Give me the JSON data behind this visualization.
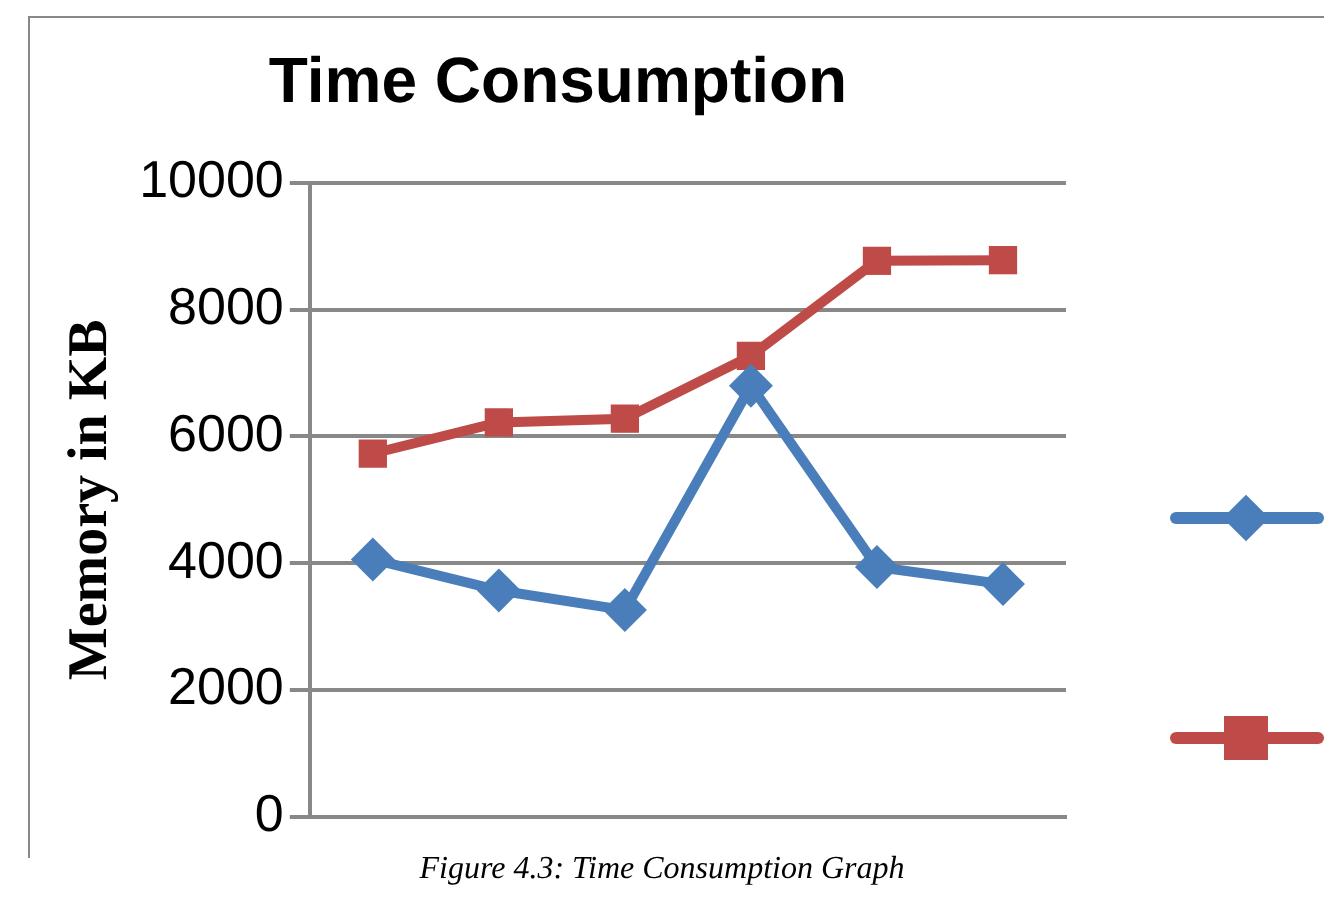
{
  "chart_data": {
    "type": "line",
    "title": "Time Consumption",
    "ylabel": "Memory in KB",
    "categories": [
      null,
      null,
      null,
      null,
      null,
      null
    ],
    "series": [
      {
        "color": "#4a7ebb",
        "marker": "diamond",
        "values": [
          4060,
          3570,
          3260,
          6800,
          3940,
          3670
        ]
      },
      {
        "color": "#be4b48",
        "marker": "square",
        "values": [
          5730,
          6220,
          6280,
          7270,
          8770,
          8780
        ]
      }
    ],
    "ylim": [
      0,
      10000
    ],
    "yticks": [
      0,
      2000,
      4000,
      6000,
      8000,
      10000
    ],
    "grid": "y",
    "tick_labels": "y",
    "annotations": [
      "Figure 4.3: Time Consumption Graph"
    ]
  }
}
